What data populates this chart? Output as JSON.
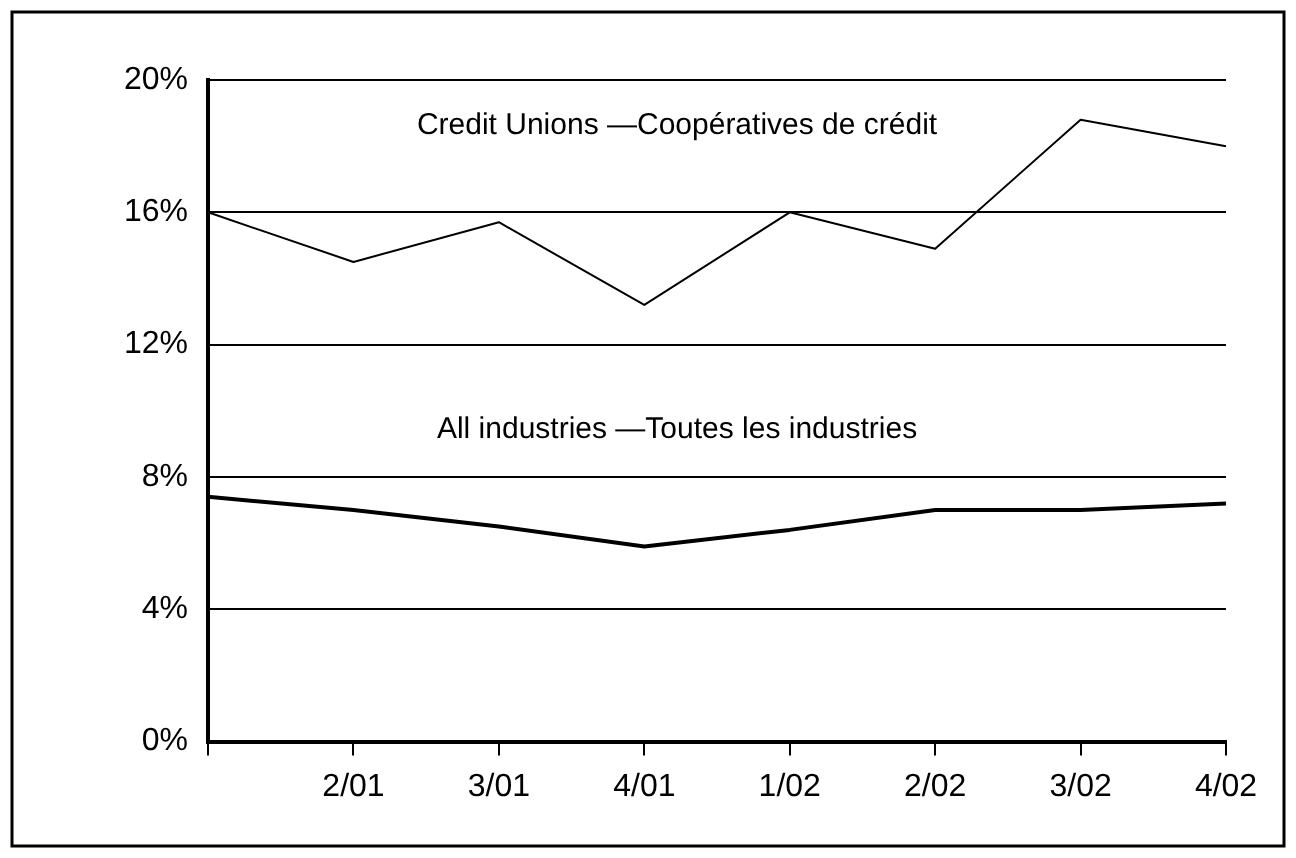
{
  "chart_data": {
    "type": "line",
    "categories": [
      null,
      "2/01",
      "3/01",
      "4/01",
      "1/02",
      "2/02",
      "3/02",
      "4/02"
    ],
    "series": [
      {
        "name": "Credit Unions —Coopératives de crédit",
        "color": "#000000",
        "values": [
          16,
          14.5,
          15.7,
          13.2,
          16,
          14.9,
          18.8,
          18.0
        ]
      },
      {
        "name": "All industries —Toutes les industries",
        "color": "#000000",
        "values": [
          7.4,
          7.0,
          6.5,
          5.9,
          6.4,
          7.0,
          7.0,
          7.2
        ]
      }
    ],
    "ylim": [
      0,
      20
    ],
    "yticks": [
      {
        "value": 0,
        "label": "0%"
      },
      {
        "value": 4,
        "label": "4%"
      },
      {
        "value": 8,
        "label": "8%"
      },
      {
        "value": 12,
        "label": "12%"
      },
      {
        "value": 16,
        "label": "16%"
      },
      {
        "value": 20,
        "label": "20%"
      }
    ],
    "grid": "y",
    "legend": false,
    "marker": "none",
    "line_style": "solid"
  }
}
